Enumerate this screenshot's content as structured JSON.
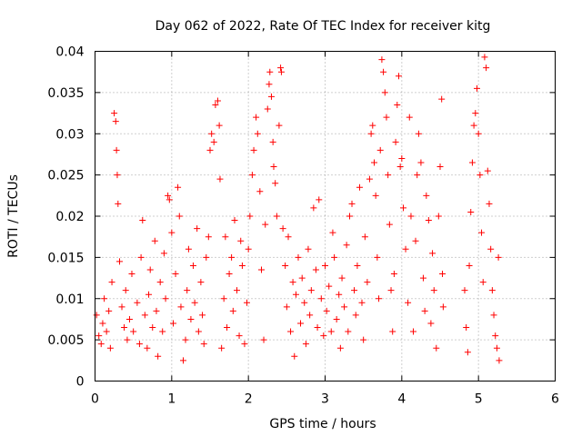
{
  "chart_data": {
    "type": "scatter",
    "title": "Day 062 of 2022, Rate Of TEC Index for receiver kitg",
    "xlabel": "GPS time / hours",
    "ylabel": "ROTI / TECUs",
    "xlim": [
      0,
      6
    ],
    "ylim": [
      0,
      0.04
    ],
    "x_ticks": [
      "0",
      "1",
      "2",
      "3",
      "4",
      "5",
      "6"
    ],
    "y_ticks": [
      "0",
      "0.005",
      "0.01",
      "0.015",
      "0.02",
      "0.025",
      "0.03",
      "0.035",
      "0.04"
    ],
    "x_tick_values": [
      0,
      1,
      2,
      3,
      4,
      5,
      6
    ],
    "y_tick_values": [
      0,
      0.005,
      0.01,
      0.015,
      0.02,
      0.025,
      0.03,
      0.035,
      0.04
    ],
    "grid": true,
    "marker": "+",
    "color": "#ff0000",
    "series": [
      {
        "points": [
          [
            0.02,
            0.008
          ],
          [
            0.05,
            0.0055
          ],
          [
            0.08,
            0.0045
          ],
          [
            0.1,
            0.007
          ],
          [
            0.12,
            0.01
          ],
          [
            0.15,
            0.006
          ],
          [
            0.18,
            0.0085
          ],
          [
            0.2,
            0.004
          ],
          [
            0.22,
            0.012
          ],
          [
            0.25,
            0.0325
          ],
          [
            0.27,
            0.0315
          ],
          [
            0.28,
            0.028
          ],
          [
            0.29,
            0.025
          ],
          [
            0.3,
            0.0215
          ],
          [
            0.32,
            0.0145
          ],
          [
            0.35,
            0.009
          ],
          [
            0.38,
            0.0065
          ],
          [
            0.4,
            0.011
          ],
          [
            0.42,
            0.005
          ],
          [
            0.45,
            0.0075
          ],
          [
            0.48,
            0.013
          ],
          [
            0.5,
            0.006
          ],
          [
            0.55,
            0.0095
          ],
          [
            0.58,
            0.0045
          ],
          [
            0.6,
            0.015
          ],
          [
            0.62,
            0.0195
          ],
          [
            0.65,
            0.008
          ],
          [
            0.68,
            0.004
          ],
          [
            0.7,
            0.0105
          ],
          [
            0.72,
            0.0135
          ],
          [
            0.75,
            0.0065
          ],
          [
            0.78,
            0.017
          ],
          [
            0.8,
            0.0085
          ],
          [
            0.82,
            0.003
          ],
          [
            0.85,
            0.012
          ],
          [
            0.88,
            0.006
          ],
          [
            0.9,
            0.0155
          ],
          [
            0.92,
            0.01
          ],
          [
            0.95,
            0.0225
          ],
          [
            0.97,
            0.022
          ],
          [
            1.0,
            0.018
          ],
          [
            1.02,
            0.007
          ],
          [
            1.05,
            0.013
          ],
          [
            1.08,
            0.0235
          ],
          [
            1.1,
            0.02
          ],
          [
            1.12,
            0.009
          ],
          [
            1.15,
            0.0025
          ],
          [
            1.18,
            0.005
          ],
          [
            1.2,
            0.011
          ],
          [
            1.22,
            0.016
          ],
          [
            1.25,
            0.0075
          ],
          [
            1.28,
            0.014
          ],
          [
            1.3,
            0.0095
          ],
          [
            1.33,
            0.0185
          ],
          [
            1.35,
            0.006
          ],
          [
            1.38,
            0.012
          ],
          [
            1.4,
            0.008
          ],
          [
            1.42,
            0.0045
          ],
          [
            1.45,
            0.015
          ],
          [
            1.48,
            0.0175
          ],
          [
            1.5,
            0.028
          ],
          [
            1.52,
            0.03
          ],
          [
            1.55,
            0.029
          ],
          [
            1.57,
            0.0335
          ],
          [
            1.6,
            0.034
          ],
          [
            1.62,
            0.031
          ],
          [
            1.63,
            0.0245
          ],
          [
            1.65,
            0.004
          ],
          [
            1.68,
            0.01
          ],
          [
            1.7,
            0.0175
          ],
          [
            1.72,
            0.0065
          ],
          [
            1.75,
            0.013
          ],
          [
            1.78,
            0.015
          ],
          [
            1.8,
            0.0085
          ],
          [
            1.82,
            0.0195
          ],
          [
            1.85,
            0.011
          ],
          [
            1.88,
            0.0055
          ],
          [
            1.9,
            0.017
          ],
          [
            1.92,
            0.014
          ],
          [
            1.95,
            0.0045
          ],
          [
            1.98,
            0.0095
          ],
          [
            2.0,
            0.016
          ],
          [
            2.02,
            0.02
          ],
          [
            2.05,
            0.025
          ],
          [
            2.07,
            0.028
          ],
          [
            2.1,
            0.032
          ],
          [
            2.12,
            0.03
          ],
          [
            2.15,
            0.023
          ],
          [
            2.17,
            0.0135
          ],
          [
            2.2,
            0.005
          ],
          [
            2.22,
            0.019
          ],
          [
            2.25,
            0.033
          ],
          [
            2.27,
            0.036
          ],
          [
            2.28,
            0.0375
          ],
          [
            2.3,
            0.0345
          ],
          [
            2.32,
            0.029
          ],
          [
            2.33,
            0.026
          ],
          [
            2.35,
            0.024
          ],
          [
            2.37,
            0.02
          ],
          [
            2.4,
            0.031
          ],
          [
            2.42,
            0.038
          ],
          [
            2.43,
            0.0375
          ],
          [
            2.45,
            0.0185
          ],
          [
            2.48,
            0.014
          ],
          [
            2.5,
            0.009
          ],
          [
            2.52,
            0.0175
          ],
          [
            2.55,
            0.006
          ],
          [
            2.58,
            0.012
          ],
          [
            2.6,
            0.003
          ],
          [
            2.62,
            0.0105
          ],
          [
            2.65,
            0.015
          ],
          [
            2.68,
            0.007
          ],
          [
            2.7,
            0.0125
          ],
          [
            2.73,
            0.0095
          ],
          [
            2.75,
            0.0045
          ],
          [
            2.78,
            0.016
          ],
          [
            2.8,
            0.008
          ],
          [
            2.82,
            0.011
          ],
          [
            2.85,
            0.021
          ],
          [
            2.88,
            0.0135
          ],
          [
            2.9,
            0.0065
          ],
          [
            2.92,
            0.022
          ],
          [
            2.95,
            0.01
          ],
          [
            2.98,
            0.0055
          ],
          [
            3.0,
            0.014
          ],
          [
            3.02,
            0.0085
          ],
          [
            3.05,
            0.0115
          ],
          [
            3.08,
            0.006
          ],
          [
            3.1,
            0.018
          ],
          [
            3.12,
            0.015
          ],
          [
            3.15,
            0.0075
          ],
          [
            3.18,
            0.0105
          ],
          [
            3.2,
            0.004
          ],
          [
            3.22,
            0.0125
          ],
          [
            3.25,
            0.009
          ],
          [
            3.28,
            0.0165
          ],
          [
            3.3,
            0.006
          ],
          [
            3.32,
            0.02
          ],
          [
            3.35,
            0.0215
          ],
          [
            3.38,
            0.011
          ],
          [
            3.4,
            0.008
          ],
          [
            3.42,
            0.014
          ],
          [
            3.45,
            0.0235
          ],
          [
            3.48,
            0.0095
          ],
          [
            3.5,
            0.005
          ],
          [
            3.52,
            0.0175
          ],
          [
            3.55,
            0.012
          ],
          [
            3.58,
            0.0245
          ],
          [
            3.6,
            0.03
          ],
          [
            3.62,
            0.031
          ],
          [
            3.64,
            0.0265
          ],
          [
            3.66,
            0.0225
          ],
          [
            3.68,
            0.015
          ],
          [
            3.7,
            0.01
          ],
          [
            3.72,
            0.028
          ],
          [
            3.74,
            0.039
          ],
          [
            3.76,
            0.0375
          ],
          [
            3.78,
            0.035
          ],
          [
            3.8,
            0.032
          ],
          [
            3.82,
            0.025
          ],
          [
            3.84,
            0.019
          ],
          [
            3.86,
            0.011
          ],
          [
            3.88,
            0.006
          ],
          [
            3.9,
            0.013
          ],
          [
            3.92,
            0.029
          ],
          [
            3.94,
            0.0335
          ],
          [
            3.96,
            0.037
          ],
          [
            3.98,
            0.026
          ],
          [
            4.0,
            0.027
          ],
          [
            4.02,
            0.021
          ],
          [
            4.05,
            0.016
          ],
          [
            4.08,
            0.0095
          ],
          [
            4.1,
            0.032
          ],
          [
            4.12,
            0.02
          ],
          [
            4.15,
            0.006
          ],
          [
            4.18,
            0.017
          ],
          [
            4.2,
            0.025
          ],
          [
            4.22,
            0.03
          ],
          [
            4.25,
            0.0265
          ],
          [
            4.28,
            0.0125
          ],
          [
            4.3,
            0.0085
          ],
          [
            4.32,
            0.0225
          ],
          [
            4.35,
            0.0195
          ],
          [
            4.38,
            0.007
          ],
          [
            4.4,
            0.0155
          ],
          [
            4.42,
            0.011
          ],
          [
            4.45,
            0.004
          ],
          [
            4.48,
            0.02
          ],
          [
            4.5,
            0.026
          ],
          [
            4.52,
            0.0342
          ],
          [
            4.53,
            0.013
          ],
          [
            4.54,
            0.009
          ],
          [
            4.82,
            0.011
          ],
          [
            4.84,
            0.0065
          ],
          [
            4.86,
            0.0035
          ],
          [
            4.88,
            0.014
          ],
          [
            4.9,
            0.0205
          ],
          [
            4.92,
            0.0265
          ],
          [
            4.94,
            0.031
          ],
          [
            4.96,
            0.0325
          ],
          [
            4.98,
            0.0355
          ],
          [
            5.0,
            0.03
          ],
          [
            5.02,
            0.025
          ],
          [
            5.04,
            0.018
          ],
          [
            5.06,
            0.012
          ],
          [
            5.08,
            0.0393
          ],
          [
            5.1,
            0.038
          ],
          [
            5.12,
            0.0255
          ],
          [
            5.14,
            0.0215
          ],
          [
            5.16,
            0.016
          ],
          [
            5.18,
            0.011
          ],
          [
            5.2,
            0.008
          ],
          [
            5.22,
            0.0055
          ],
          [
            5.24,
            0.004
          ],
          [
            5.26,
            0.015
          ],
          [
            5.27,
            0.0025
          ]
        ]
      }
    ]
  }
}
